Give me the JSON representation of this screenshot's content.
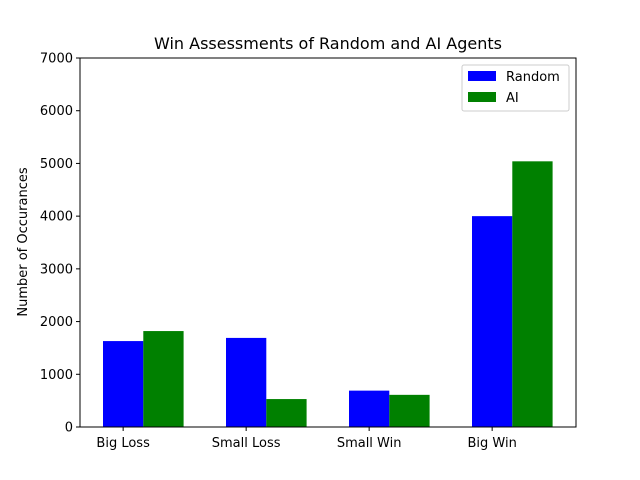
{
  "chart_data": {
    "type": "bar",
    "title": "Win Assessments of Random and AI Agents",
    "xlabel": "",
    "ylabel": "Number of Occurances",
    "categories": [
      "Big Loss",
      "Small Loss",
      "Small Win",
      "Big Win"
    ],
    "series": [
      {
        "name": "Random",
        "color": "#0000ff",
        "values": [
          1630,
          1690,
          690,
          4000
        ]
      },
      {
        "name": "AI",
        "color": "#008000",
        "values": [
          1820,
          530,
          610,
          5040
        ]
      }
    ],
    "ylim": [
      0,
      7000
    ],
    "yticks": [
      0,
      1000,
      2000,
      3000,
      4000,
      5000,
      6000,
      7000
    ],
    "grid": false,
    "legend_position": "top-right"
  }
}
